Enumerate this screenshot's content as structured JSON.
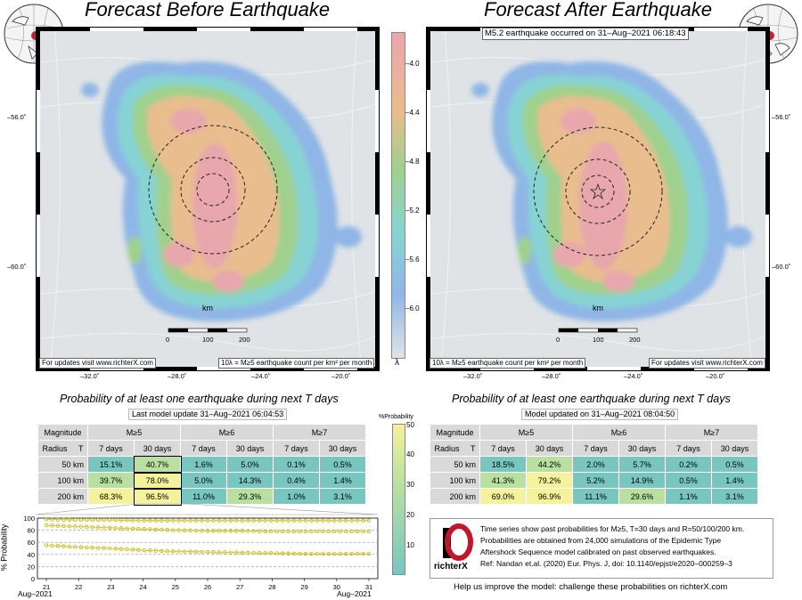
{
  "left": {
    "title": "Forecast Before Earthquake",
    "update_note": "For updates visit www.richterX.com",
    "unit_note": "10λ = M≥5 earthquake count per km² per month",
    "scale_label": "km",
    "scale_ticks": [
      "0",
      "100",
      "200"
    ],
    "lat_labels": [
      "–56.0˚",
      "–60.0˚"
    ],
    "lon_labels": [
      "–32.0˚",
      "–28.0˚",
      "–24.0˚",
      "–20.0˚"
    ],
    "prob_title": "Probability of at least one earthquake during next T days",
    "prob_subtitle": "Last model update 31–Aug–2021 06:04:53"
  },
  "right": {
    "title": "Forecast After Earthquake",
    "quake_note": "M5.2 earthquake occurred on 31–Aug–2021 06:18:43",
    "update_note": "For updates visit www.richterX.com",
    "unit_note": "10λ = M≥5 earthquake count per km² per month",
    "scale_label": "km",
    "scale_ticks": [
      "0",
      "100",
      "200"
    ],
    "lat_labels": [
      "–56.0˚",
      "–60.0˚"
    ],
    "lon_labels": [
      "–32.0˚",
      "–28.0˚",
      "–24.0˚",
      "–20.0˚"
    ],
    "prob_title": "Probability of at least one earthquake during next T days",
    "prob_subtitle": "Model updated on 31–Aug–2021 08:04:50"
  },
  "colorbar": {
    "ticks": [
      "–4.0",
      "–4.4",
      "–4.8",
      "–5.2",
      "–5.6",
      "–6.0"
    ],
    "label": "λ"
  },
  "prob_colorbar": {
    "label": "%Probability",
    "ticks": [
      "50",
      "40",
      "30",
      "20",
      "10"
    ]
  },
  "table_headers": {
    "magnitude": "Magnitude",
    "radius": "Radius",
    "t": "T",
    "m5": "M≥5",
    "m6": "M≥6",
    "m7": "M≥7",
    "d7": "7 days",
    "d30": "30 days",
    "radii": [
      "50 km",
      "100 km",
      "200 km"
    ]
  },
  "table_left": {
    "rows": [
      [
        "15.1%",
        "40.7%",
        "1.6%",
        "5.0%",
        "0.1%",
        "0.5%"
      ],
      [
        "39.7%",
        "78.0%",
        "5.0%",
        "14.3%",
        "0.4%",
        "1.4%"
      ],
      [
        "68.3%",
        "96.5%",
        "11.0%",
        "29.3%",
        "1.0%",
        "3.1%"
      ]
    ],
    "values": [
      [
        15.1,
        40.7,
        1.6,
        5.0,
        0.1,
        0.5
      ],
      [
        39.7,
        78.0,
        5.0,
        14.3,
        0.4,
        1.4
      ],
      [
        68.3,
        96.5,
        11.0,
        29.3,
        1.0,
        3.1
      ]
    ]
  },
  "table_right": {
    "rows": [
      [
        "18.5%",
        "44.2%",
        "2.0%",
        "5.7%",
        "0.2%",
        "0.5%"
      ],
      [
        "41.3%",
        "79.2%",
        "5.2%",
        "14.9%",
        "0.5%",
        "1.4%"
      ],
      [
        "69.0%",
        "96.9%",
        "11.1%",
        "29.6%",
        "1.1%",
        "3.1%"
      ]
    ],
    "values": [
      [
        18.5,
        44.2,
        2.0,
        5.7,
        0.2,
        0.5
      ],
      [
        41.3,
        79.2,
        5.2,
        14.9,
        0.5,
        1.4
      ],
      [
        69.0,
        96.9,
        11.1,
        29.6,
        1.1,
        3.1
      ]
    ]
  },
  "chart_data": {
    "type": "line",
    "ylabel": "% Probability",
    "ylim": [
      0,
      100
    ],
    "yticks": [
      0,
      20,
      40,
      60,
      80,
      100
    ],
    "xticks": [
      "21",
      "22",
      "23",
      "24",
      "25",
      "26",
      "27",
      "28",
      "29",
      "30",
      "31"
    ],
    "x_start_label": "Aug–2021",
    "x_end_label": "Aug–2021",
    "grid": true,
    "series": [
      {
        "values": [
          98,
          97,
          97,
          96,
          96,
          96,
          96,
          96,
          96,
          96,
          96
        ]
      },
      {
        "values": [
          88,
          86,
          84,
          82,
          80,
          79,
          79,
          78,
          78,
          78,
          78
        ]
      },
      {
        "values": [
          55,
          52,
          50,
          47,
          45,
          44,
          43,
          42,
          41,
          41,
          41
        ]
      }
    ]
  },
  "legend": {
    "logo_text": "richterX",
    "lines": [
      "Time series show past probabilities for M≥5, T=30 days and R=50/100/200 km.",
      "Probabilities are obtained from 24,000 simulations of the Epidemic Type",
      "Aftershock Sequence model calibrated on past observed earthquakes.",
      "Ref: Nandan et.al. (2020) Eur. Phys. J, doi: 10.1140/epjst/e2020–000259–3"
    ]
  },
  "footer": "Help us improve the model: challenge these probabilities on richterX.com",
  "colors": {
    "high": "#e8a6ad",
    "mid": "#e9bd8e",
    "green": "#9fd08d",
    "cyan": "#87d3d4",
    "blue": "#8fb6e6",
    "land": "#dfe3e6",
    "cell_low": "#78c6c0",
    "cell_mid": "#b9e0a1",
    "cell_high": "#f4f29a"
  }
}
